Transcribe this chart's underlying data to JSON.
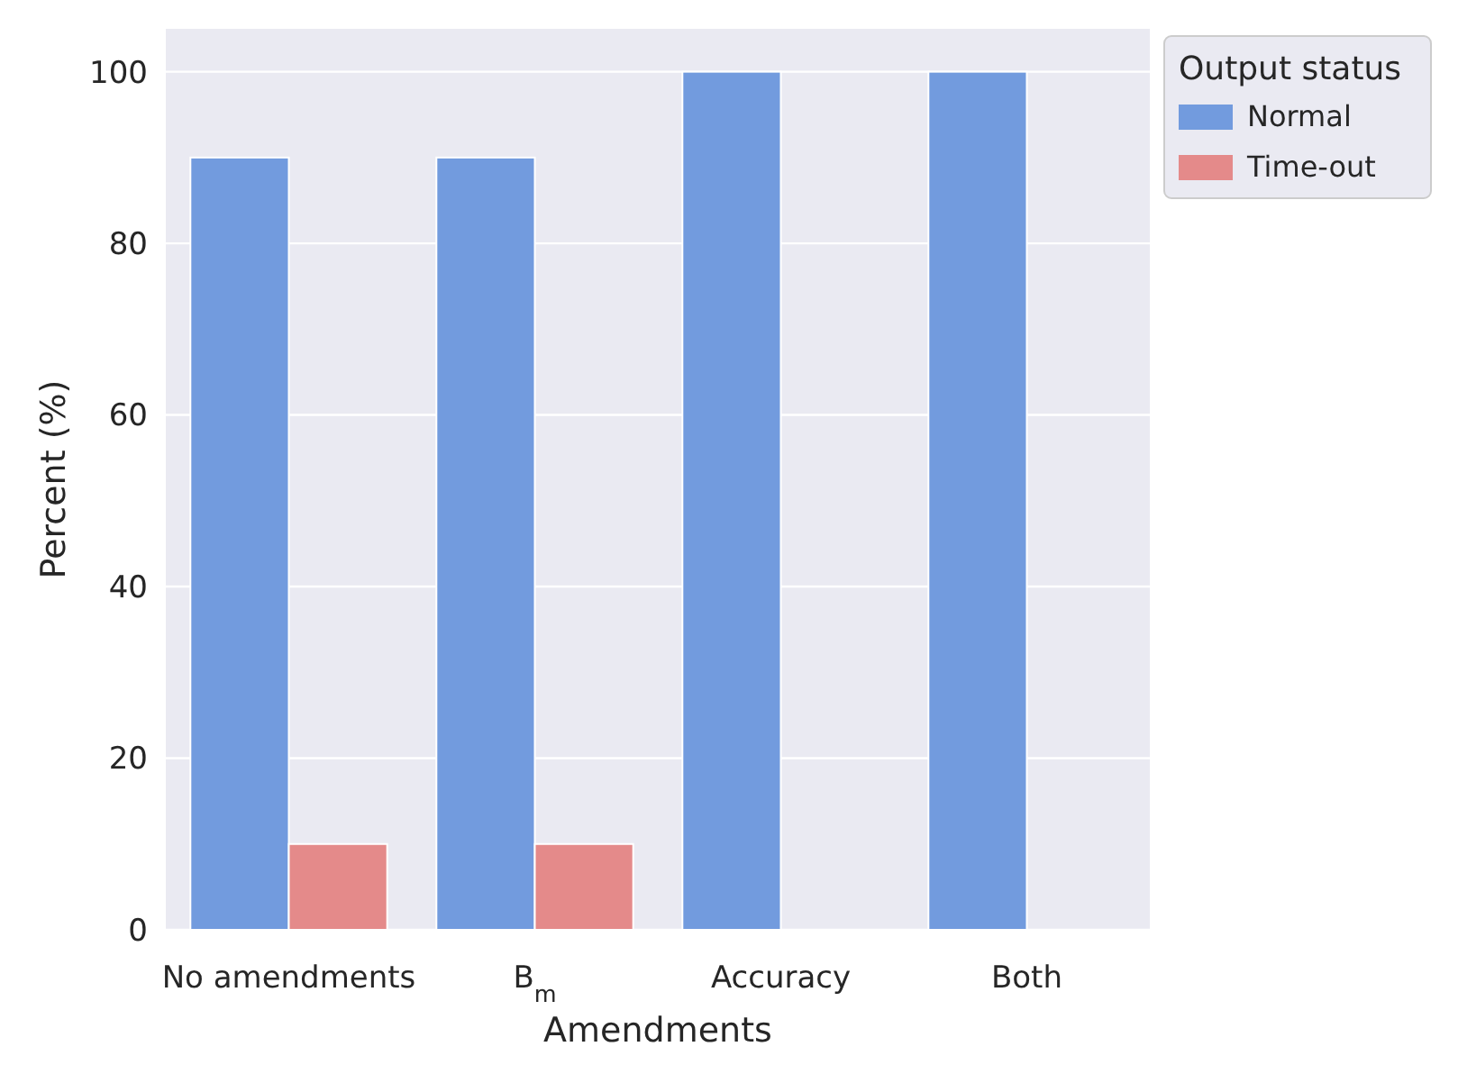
{
  "chart_data": {
    "type": "bar",
    "xlabel": "Amendments",
    "ylabel": "Percent (%)",
    "legend_title": "Output status",
    "categories": [
      "No amendments",
      "B$_{m}$",
      "Accuracy",
      "Both"
    ],
    "series": [
      {
        "name": "Normal",
        "color": "#729bde",
        "values": [
          90,
          90,
          100,
          100
        ]
      },
      {
        "name": "Time-out",
        "color": "#e48a8a",
        "values": [
          10,
          10,
          0,
          0
        ]
      }
    ],
    "ylim": [
      0,
      105
    ],
    "yticks": [
      0,
      20,
      40,
      60,
      80,
      100
    ],
    "grid": "y",
    "legend": "right"
  }
}
